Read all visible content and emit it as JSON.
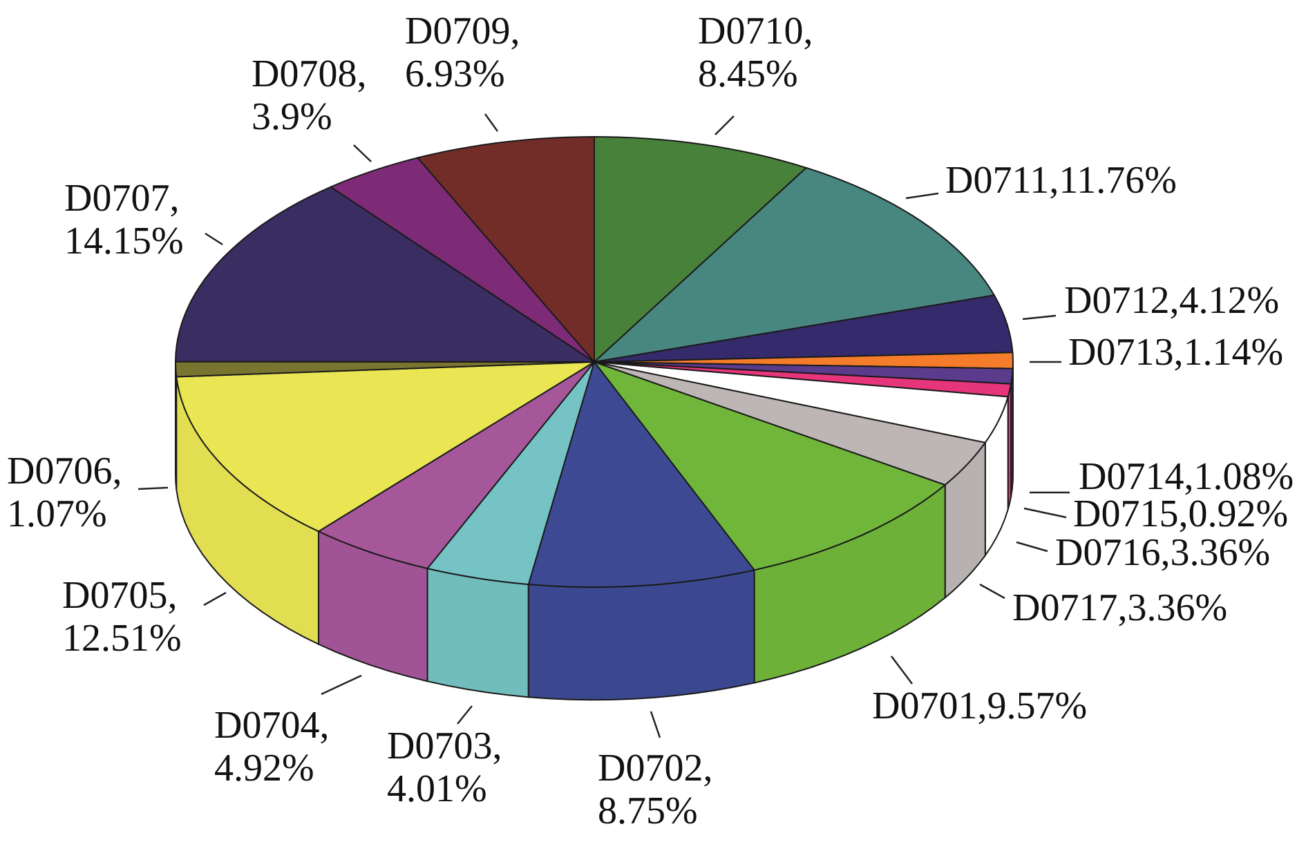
{
  "chart_data": {
    "type": "pie",
    "style": "3d-exploded-none",
    "slices": [
      {
        "name": "D0701",
        "value": 9.57,
        "label": "D0701,9.57%",
        "color": "#70b63b"
      },
      {
        "name": "D0702",
        "value": 8.75,
        "label": "D0702,\n8.75%",
        "color": "#3d4a93"
      },
      {
        "name": "D0703",
        "value": 4.01,
        "label": "D0703,\n4.01%",
        "color": "#75c3c4"
      },
      {
        "name": "D0704",
        "value": 4.92,
        "label": "D0704,\n4.92%",
        "color": "#a5579a"
      },
      {
        "name": "D0705",
        "value": 12.51,
        "label": "D0705,\n12.51%",
        "color": "#e9e553"
      },
      {
        "name": "D0706",
        "value": 1.07,
        "label": "D0706,\n1.07%",
        "color": "#7a7431"
      },
      {
        "name": "D0707",
        "value": 14.15,
        "label": "D0707,\n14.15%",
        "color": "#3a2d61"
      },
      {
        "name": "D0708",
        "value": 3.9,
        "label": "D0708,\n3.9%",
        "color": "#7e2b77"
      },
      {
        "name": "D0709",
        "value": 6.93,
        "label": "D0709,\n6.93%",
        "color": "#722d28"
      },
      {
        "name": "D0710",
        "value": 8.45,
        "label": "D0710,\n8.45%",
        "color": "#48813a"
      },
      {
        "name": "D0711",
        "value": 11.76,
        "label": "D0711,11.76%",
        "color": "#488680"
      },
      {
        "name": "D0712",
        "value": 4.12,
        "label": "D0712,4.12%",
        "color": "#352a6c"
      },
      {
        "name": "D0713",
        "value": 1.14,
        "label": "D0713,1.14%",
        "color": "#f47c2a"
      },
      {
        "name": "D0714",
        "value": 1.08,
        "label": "D0714,1.08%",
        "color": "#5a3b8c"
      },
      {
        "name": "D0715",
        "value": 0.92,
        "label": "D0715,0.92%",
        "color": "#e7357c"
      },
      {
        "name": "D0716",
        "value": 3.36,
        "label": "D0716,3.36%",
        "color": "#ffffff"
      },
      {
        "name": "D0717",
        "value": 3.36,
        "label": "D0717,3.36%",
        "color": "#bdb6b5"
      }
    ]
  }
}
